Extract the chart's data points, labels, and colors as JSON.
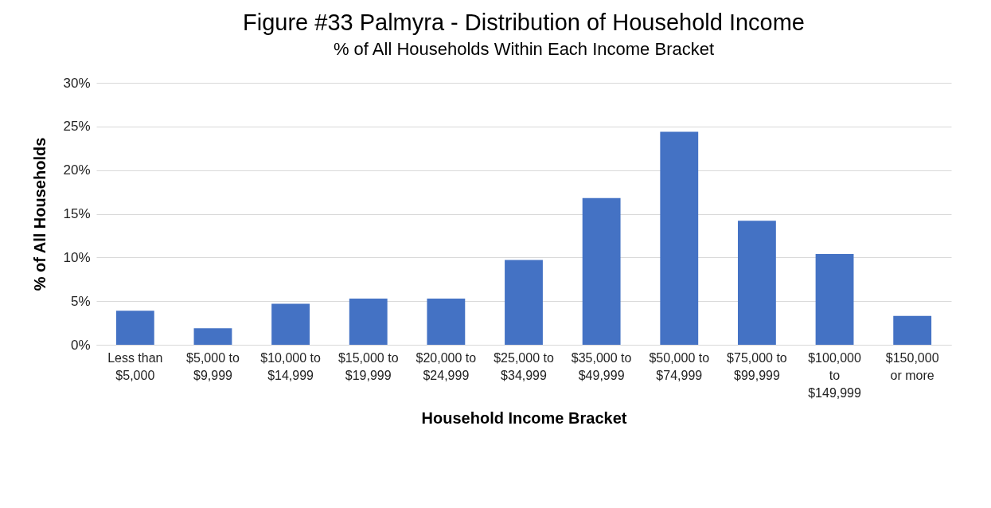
{
  "chart_data": {
    "type": "bar",
    "title": "Figure #33  Palmyra - Distribution of Household Income",
    "subtitle": "% of All Households Within Each Income Bracket",
    "xlabel": "Household Income Bracket",
    "ylabel": "% of All  Households",
    "categories": [
      "Less than\n$5,000",
      "$5,000 to\n$9,999",
      "$10,000 to\n$14,999",
      "$15,000 to\n$19,999",
      "$20,000 to\n$24,999",
      "$25,000 to\n$34,999",
      "$35,000 to\n$49,999",
      "$50,000 to\n$74,999",
      "$75,000 to\n$99,999",
      "$100,000\nto\n$149,999",
      "$150,000\nor more"
    ],
    "values": [
      3.9,
      1.9,
      4.7,
      5.3,
      5.3,
      9.7,
      16.8,
      24.4,
      14.2,
      10.4,
      3.3
    ],
    "color": "#4472c4",
    "ylim": [
      0,
      30
    ],
    "yticks": [
      {
        "value": 0,
        "label": "0%"
      },
      {
        "value": 5,
        "label": "5%"
      },
      {
        "value": 10,
        "label": "10%"
      },
      {
        "value": 15,
        "label": "15%"
      },
      {
        "value": 20,
        "label": "20%"
      },
      {
        "value": 25,
        "label": "25%"
      },
      {
        "value": 30,
        "label": "30%"
      }
    ],
    "grid": "y"
  }
}
